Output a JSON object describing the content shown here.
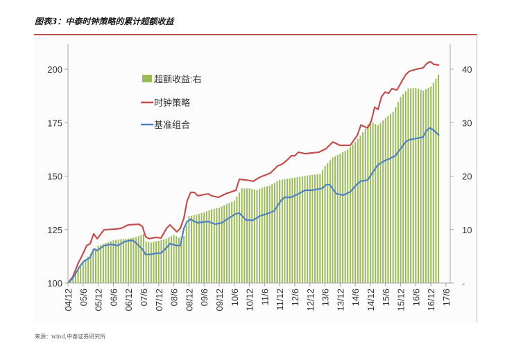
{
  "title": "图表3：中泰时钟策略的累计超额收益",
  "source": "来源：wind,中泰证券研究所",
  "chart_data": {
    "type": "bar+line",
    "title": "图表3：中泰时钟策略的累计超额收益",
    "x_unit": "month index from 2004/12 (monthly data)",
    "x_tick_labels": [
      "04/12",
      "05/6",
      "05/12",
      "06/6",
      "06/12",
      "07/6",
      "07/12",
      "08/6",
      "08/12",
      "09/6",
      "09/12",
      "10/6",
      "10/12",
      "11/6",
      "11/12",
      "12/6",
      "12/12",
      "13/6",
      "13/12",
      "14/6",
      "14/12",
      "15/6",
      "15/12",
      "16/6",
      "16/12",
      "17/6"
    ],
    "xlim": [
      0,
      150
    ],
    "left_axis": {
      "ylim": [
        100,
        210
      ],
      "ticks": [
        "100",
        "125",
        "150",
        "175",
        "200"
      ],
      "tick_values": [
        100,
        125,
        150,
        175,
        200
      ]
    },
    "right_axis": {
      "ylim": [
        0,
        44
      ],
      "ticks": [
        "-",
        "10",
        "20",
        "30",
        "40"
      ],
      "tick_values": [
        0,
        10,
        20,
        30,
        40
      ]
    },
    "legend_position": "top-left",
    "series": [
      {
        "name": "超额收益:右",
        "type": "bar",
        "axis": "right",
        "color": "#9bbb59",
        "points": [
          [
            0,
            0
          ],
          [
            2,
            1.0
          ],
          [
            4,
            2.5
          ],
          [
            6,
            3.8
          ],
          [
            9,
            5.5
          ],
          [
            12,
            7.0
          ],
          [
            15,
            7.5
          ],
          [
            18,
            8.0
          ],
          [
            21,
            8.2
          ],
          [
            24,
            8.3
          ],
          [
            27,
            8.6
          ],
          [
            30,
            9.2
          ],
          [
            31,
            7.8
          ],
          [
            33,
            7.6
          ],
          [
            36,
            7.9
          ],
          [
            39,
            8.3
          ],
          [
            42,
            9.0
          ],
          [
            44,
            8.5
          ],
          [
            46,
            8.8
          ],
          [
            48,
            12.5
          ],
          [
            51,
            12.8
          ],
          [
            54,
            13.2
          ],
          [
            57,
            13.8
          ],
          [
            60,
            14.1
          ],
          [
            63,
            14.8
          ],
          [
            66,
            15.4
          ],
          [
            69,
            17.7
          ],
          [
            72,
            17.7
          ],
          [
            75,
            17.4
          ],
          [
            78,
            18.0
          ],
          [
            80,
            18.2
          ],
          [
            84,
            19.3
          ],
          [
            90,
            19.7
          ],
          [
            96,
            20.2
          ],
          [
            100,
            20.4
          ],
          [
            102,
            21.9
          ],
          [
            105,
            23.5
          ],
          [
            108,
            24.2
          ],
          [
            111,
            25.0
          ],
          [
            114,
            26.4
          ],
          [
            117,
            28.2
          ],
          [
            120,
            30.3
          ],
          [
            123,
            29.5
          ],
          [
            126,
            30.9
          ],
          [
            129,
            32.0
          ],
          [
            132,
            34.8
          ],
          [
            135,
            36.4
          ],
          [
            138,
            36.5
          ],
          [
            141,
            36.0
          ],
          [
            144,
            36.8
          ],
          [
            146,
            38.2
          ],
          [
            147,
            39.0
          ]
        ]
      },
      {
        "name": "时钟策略",
        "type": "line",
        "axis": "left",
        "color": "#c0504d",
        "points": [
          [
            0,
            100
          ],
          [
            1.9,
            102.9
          ],
          [
            4.1,
            109.4
          ],
          [
            5.5,
            112.6
          ],
          [
            7.4,
            117.5
          ],
          [
            8.8,
            118.4
          ],
          [
            10.2,
            123.0
          ],
          [
            11.6,
            120.7
          ],
          [
            14.3,
            124.9
          ],
          [
            18.4,
            125.2
          ],
          [
            21.2,
            125.6
          ],
          [
            23.9,
            127.2
          ],
          [
            28.1,
            127.5
          ],
          [
            29.5,
            126.5
          ],
          [
            30.8,
            121.7
          ],
          [
            32.2,
            120.7
          ],
          [
            35.0,
            121.4
          ],
          [
            36.9,
            121.0
          ],
          [
            39.1,
            125.6
          ],
          [
            40.5,
            127.2
          ],
          [
            43.2,
            123.9
          ],
          [
            44.6,
            125.6
          ],
          [
            46.0,
            130.4
          ],
          [
            47.3,
            138.5
          ],
          [
            48.7,
            142.4
          ],
          [
            50.1,
            142.4
          ],
          [
            51.5,
            140.8
          ],
          [
            55.6,
            141.7
          ],
          [
            57.0,
            140.8
          ],
          [
            59.7,
            140.1
          ],
          [
            62.5,
            141.7
          ],
          [
            66.6,
            143.4
          ],
          [
            68.0,
            148.5
          ],
          [
            70.7,
            148.2
          ],
          [
            73.5,
            147.6
          ],
          [
            76.2,
            149.5
          ],
          [
            79.0,
            150.8
          ],
          [
            80.4,
            151.5
          ],
          [
            83.1,
            154.7
          ],
          [
            85.1,
            155.7
          ],
          [
            87.3,
            157.9
          ],
          [
            88.6,
            159.5
          ],
          [
            90.0,
            159.5
          ],
          [
            91.4,
            161.2
          ],
          [
            94.1,
            160.5
          ],
          [
            99.6,
            161.2
          ],
          [
            102.4,
            162.8
          ],
          [
            105.1,
            166.0
          ],
          [
            107.9,
            164.4
          ],
          [
            112.0,
            164.4
          ],
          [
            114.8,
            169.1
          ],
          [
            116.2,
            173.9
          ],
          [
            118.9,
            172.5
          ],
          [
            120.3,
            175.6
          ],
          [
            121.7,
            182.2
          ],
          [
            123.0,
            181.2
          ],
          [
            124.4,
            187.1
          ],
          [
            125.8,
            189.3
          ],
          [
            127.2,
            188.7
          ],
          [
            128.5,
            190.9
          ],
          [
            130.5,
            190.3
          ],
          [
            131.3,
            191.9
          ],
          [
            134.0,
            197.4
          ],
          [
            135.4,
            199.0
          ],
          [
            138.2,
            200.0
          ],
          [
            140.9,
            200.6
          ],
          [
            142.3,
            202.6
          ],
          [
            143.7,
            203.6
          ],
          [
            145.1,
            202.3
          ],
          [
            147.3,
            201.9
          ]
        ]
      },
      {
        "name": "基准组合",
        "type": "line",
        "axis": "left",
        "color": "#4f81bd",
        "points": [
          [
            0,
            100
          ],
          [
            1.9,
            102.3
          ],
          [
            4.7,
            107.8
          ],
          [
            6.1,
            110.0
          ],
          [
            8.8,
            112.0
          ],
          [
            10.2,
            115.9
          ],
          [
            11.6,
            115.2
          ],
          [
            14.3,
            117.5
          ],
          [
            17.1,
            118.1
          ],
          [
            19.8,
            117.5
          ],
          [
            22.6,
            119.4
          ],
          [
            25.3,
            120.1
          ],
          [
            26.7,
            119.1
          ],
          [
            29.5,
            115.9
          ],
          [
            30.8,
            113.3
          ],
          [
            32.2,
            113.3
          ],
          [
            35.0,
            113.9
          ],
          [
            36.9,
            113.9
          ],
          [
            39.1,
            116.5
          ],
          [
            40.5,
            118.4
          ],
          [
            43.2,
            117.5
          ],
          [
            44.6,
            117.5
          ],
          [
            46.0,
            125.6
          ],
          [
            47.3,
            128.8
          ],
          [
            48.7,
            129.8
          ],
          [
            50.1,
            128.8
          ],
          [
            51.5,
            128.2
          ],
          [
            55.6,
            128.8
          ],
          [
            58.4,
            127.5
          ],
          [
            61.1,
            128.2
          ],
          [
            63.9,
            130.4
          ],
          [
            66.6,
            132.4
          ],
          [
            68.0,
            132.7
          ],
          [
            70.7,
            129.4
          ],
          [
            73.5,
            129.4
          ],
          [
            76.2,
            131.4
          ],
          [
            79.0,
            132.4
          ],
          [
            81.8,
            133.7
          ],
          [
            84.5,
            138.5
          ],
          [
            85.9,
            140.1
          ],
          [
            88.6,
            140.1
          ],
          [
            91.4,
            141.7
          ],
          [
            94.1,
            143.4
          ],
          [
            96.9,
            143.4
          ],
          [
            101.0,
            144.3
          ],
          [
            102.4,
            146.0
          ],
          [
            103.8,
            146.0
          ],
          [
            106.5,
            141.7
          ],
          [
            109.3,
            141.1
          ],
          [
            112.0,
            142.7
          ],
          [
            114.8,
            146.3
          ],
          [
            116.2,
            147.6
          ],
          [
            118.9,
            148.2
          ],
          [
            121.7,
            153.1
          ],
          [
            123.0,
            155.3
          ],
          [
            124.4,
            156.3
          ],
          [
            125.8,
            157.3
          ],
          [
            127.2,
            157.9
          ],
          [
            129.9,
            159.5
          ],
          [
            131.3,
            161.8
          ],
          [
            134.0,
            166.0
          ],
          [
            135.4,
            167.0
          ],
          [
            138.2,
            167.6
          ],
          [
            140.9,
            168.3
          ],
          [
            142.3,
            171.5
          ],
          [
            143.7,
            172.5
          ],
          [
            145.1,
            171.5
          ],
          [
            147.3,
            169.0
          ]
        ]
      }
    ]
  }
}
